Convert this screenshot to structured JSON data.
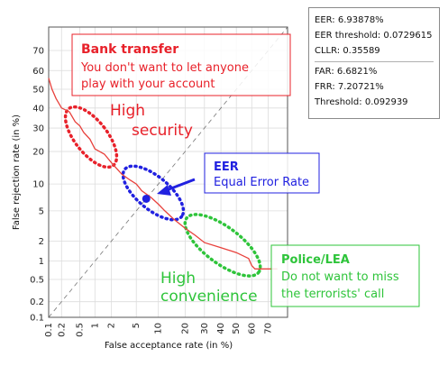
{
  "chart_data": {
    "type": "line",
    "title": "",
    "xlabel": "False acceptance rate (in %)",
    "ylabel": "False rejection rate (in %)",
    "x_scale": "normal-deviate",
    "y_scale": "normal-deviate",
    "xlim": [
      0.1,
      80
    ],
    "ylim": [
      0.1,
      80
    ],
    "x_ticks": [
      "0.1",
      "0.2",
      "0.5",
      "1",
      "2",
      "5",
      "10",
      "20",
      "30",
      "40",
      "50",
      "60",
      "70"
    ],
    "y_ticks": [
      "0.1",
      "0.2",
      "0.5",
      "1",
      "2",
      "5",
      "10",
      "20",
      "30",
      "40",
      "50",
      "60",
      "70"
    ],
    "x_tick_values": [
      0.1,
      0.2,
      0.5,
      1,
      2,
      5,
      10,
      20,
      30,
      40,
      50,
      60,
      70
    ],
    "y_tick_values": [
      0.1,
      0.2,
      0.5,
      1,
      2,
      5,
      10,
      20,
      30,
      40,
      50,
      60,
      70
    ],
    "grid": true,
    "diagonal_reference": true,
    "series": [
      {
        "color": "#e8413c",
        "points": [
          [
            0.1,
            56
          ],
          [
            0.12,
            50
          ],
          [
            0.15,
            45
          ],
          [
            0.2,
            40
          ],
          [
            0.3,
            38
          ],
          [
            0.4,
            33
          ],
          [
            0.5,
            31
          ],
          [
            0.6,
            28
          ],
          [
            0.8,
            25
          ],
          [
            1,
            21
          ],
          [
            1.5,
            19
          ],
          [
            2,
            16
          ],
          [
            2.5,
            14
          ],
          [
            3,
            12.5
          ],
          [
            4,
            11
          ],
          [
            5,
            10
          ],
          [
            6,
            8.5
          ],
          [
            8,
            7.2
          ],
          [
            10,
            6.0
          ],
          [
            12,
            5.0
          ],
          [
            15,
            4.0
          ],
          [
            20,
            3.0
          ],
          [
            25,
            2.4
          ],
          [
            30,
            1.9
          ],
          [
            40,
            1.6
          ],
          [
            50,
            1.35
          ],
          [
            58,
            1.1
          ],
          [
            60,
            0.85
          ],
          [
            62,
            0.75
          ],
          [
            75,
            0.75
          ]
        ]
      }
    ],
    "eer_point": {
      "x": 6.93878,
      "y": 6.93878
    }
  },
  "stats": {
    "eer": "EER: 6.93878%",
    "eer_threshold": "EER threshold: 0.0729615",
    "cllr": "CLLR: 0.35589",
    "far": "FAR: 6.6821%",
    "frr": "FRR: 7.20721%",
    "threshold": "Threshold: 0.092939"
  },
  "annotations": {
    "bank": {
      "title": "Bank transfer",
      "line1": "You don't want to let anyone",
      "line2": "play with your account"
    },
    "high_security": {
      "line1": "High",
      "line2": "security"
    },
    "eer": {
      "title": "EER",
      "subtitle": "Equal Error Rate"
    },
    "police": {
      "title": "Police/LEA",
      "line1": "Do not want to miss",
      "line2": "the terrorists' call"
    },
    "high_convenience": {
      "line1": "High",
      "line2": "convenience"
    }
  },
  "colors": {
    "curve": "#e8413c",
    "red": "#e8212a",
    "blue": "#2121e0",
    "green": "#2ec43a",
    "grid": "#dcdcdc"
  }
}
